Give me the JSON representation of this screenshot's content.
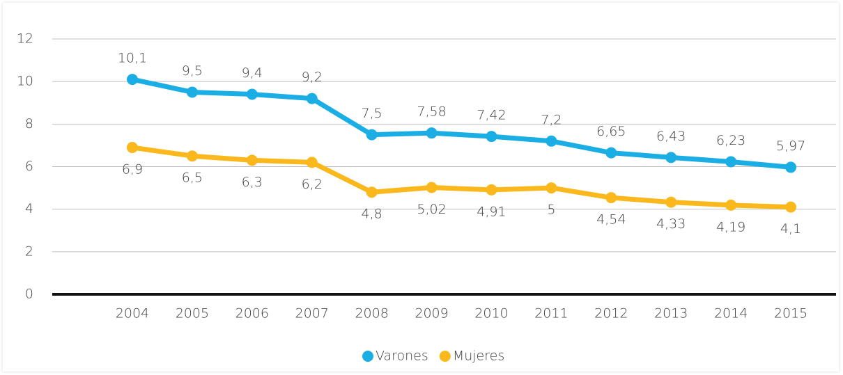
{
  "chart_data": {
    "type": "line",
    "categories": [
      "2004",
      "2005",
      "2006",
      "2007",
      "2008",
      "2009",
      "2010",
      "2011",
      "2012",
      "2013",
      "2014",
      "2015"
    ],
    "series": [
      {
        "name": "Varones",
        "color": "#1aaee5",
        "values": [
          10.1,
          9.5,
          9.4,
          9.2,
          7.5,
          7.58,
          7.42,
          7.2,
          6.65,
          6.43,
          6.23,
          5.97
        ],
        "value_labels": [
          "10,1",
          "9,5",
          "9,4",
          "9,2",
          "7,5",
          "7,58",
          "7,42",
          "7,2",
          "6,65",
          "6,43",
          "6,23",
          "5,97"
        ]
      },
      {
        "name": "Mujeres",
        "color": "#fbb81c",
        "values": [
          6.9,
          6.5,
          6.3,
          6.2,
          4.8,
          5.02,
          4.91,
          5,
          4.54,
          4.33,
          4.19,
          4.1
        ],
        "value_labels": [
          "6,9",
          "6,5",
          "6,3",
          "6,2",
          "4,8",
          "5,02",
          "4,91",
          "5",
          "4,54",
          "4,33",
          "4,19",
          "4,1"
        ]
      }
    ],
    "ylim": [
      0,
      12
    ],
    "yticks": [
      0,
      2,
      4,
      6,
      8,
      10,
      12
    ],
    "grid": true,
    "legend": "bottom"
  }
}
